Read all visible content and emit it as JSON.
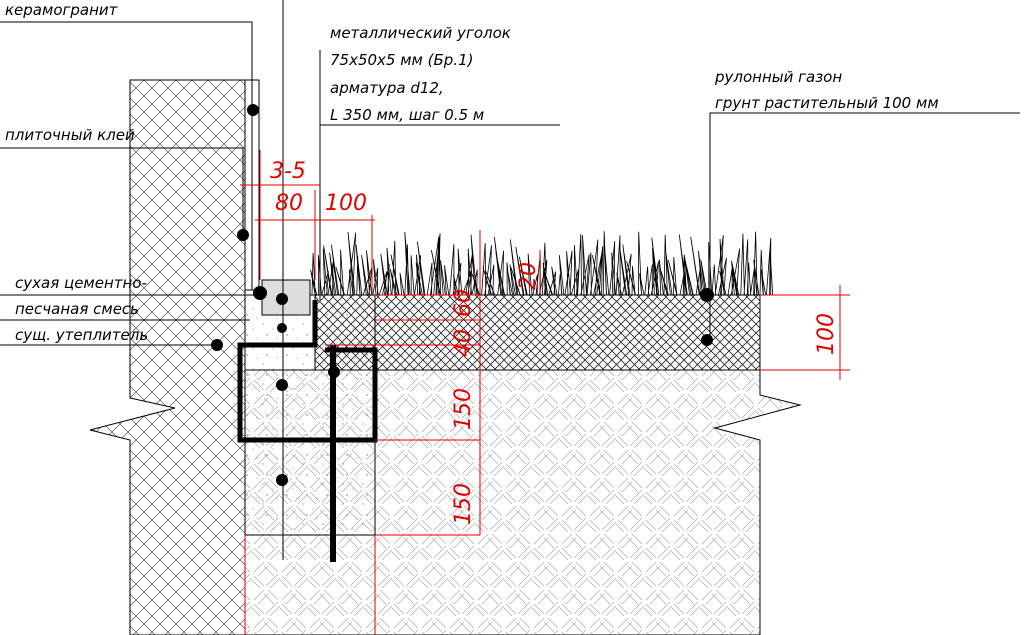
{
  "labels": {
    "ceramic": "керамогранит",
    "angle_1": "металлический уголок",
    "angle_2": "75х50х5 мм (Бр.1)",
    "angle_3": "арматура d12,",
    "angle_4": "L 350 мм, шаг 0.5 м",
    "lawn_1": "рулонный газон",
    "lawn_2": "грунт растительный  100 мм",
    "glue": "плиточный клей",
    "mix_1": "сухая цементно-",
    "mix_2": "песчаная смесь",
    "insulation": "сущ. утеплитель"
  },
  "dimensions": {
    "gap": "3-5",
    "width_80": "80",
    "width_100": "100",
    "d20": "20",
    "d40": "40",
    "d60": "60",
    "d150a": "150",
    "d150b": "150",
    "d100": "100"
  }
}
